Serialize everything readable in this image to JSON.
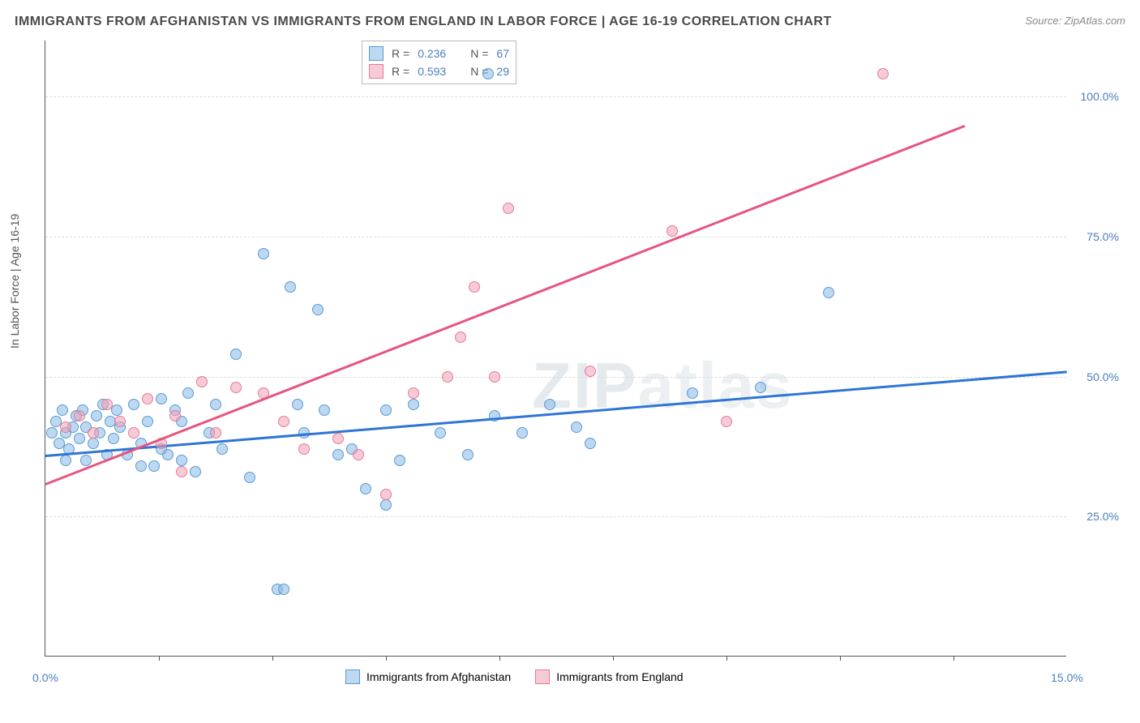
{
  "title": "IMMIGRANTS FROM AFGHANISTAN VS IMMIGRANTS FROM ENGLAND IN LABOR FORCE | AGE 16-19 CORRELATION CHART",
  "source": "Source: ZipAtlas.com",
  "ylabel": "In Labor Force | Age 16-19",
  "watermark": "ZIPatlas",
  "chart": {
    "type": "scatter",
    "xlim": [
      0,
      15
    ],
    "ylim": [
      0,
      110
    ],
    "x_ticks_major": [
      0,
      15
    ],
    "x_ticks_minor": [
      1.67,
      3.33,
      5.0,
      6.67,
      8.33,
      10.0,
      11.67,
      13.33
    ],
    "x_tick_labels": [
      "0.0%",
      "15.0%"
    ],
    "y_ticks": [
      25,
      50,
      75,
      100
    ],
    "y_tick_labels": [
      "25.0%",
      "50.0%",
      "75.0%",
      "100.0%"
    ],
    "grid_color": "#dddddd",
    "background_color": "#ffffff",
    "tick_label_color": "#4a7ebb",
    "axis_label_color": "#555555",
    "series": [
      {
        "name": "Immigrants from Afghanistan",
        "color_fill": "rgba(135,185,230,0.55)",
        "color_stroke": "#5a9bd4",
        "trend_color": "#2e75d6",
        "marker_size": 14,
        "R": "0.236",
        "N": "67",
        "trend": {
          "x1": 0,
          "y1": 36,
          "x2": 15,
          "y2": 51
        },
        "points": [
          [
            0.1,
            40
          ],
          [
            0.15,
            42
          ],
          [
            0.2,
            38
          ],
          [
            0.25,
            44
          ],
          [
            0.3,
            40
          ],
          [
            0.35,
            37
          ],
          [
            0.4,
            41
          ],
          [
            0.45,
            43
          ],
          [
            0.5,
            39
          ],
          [
            0.55,
            44
          ],
          [
            0.6,
            41
          ],
          [
            0.7,
            38
          ],
          [
            0.75,
            43
          ],
          [
            0.8,
            40
          ],
          [
            0.85,
            45
          ],
          [
            0.9,
            36
          ],
          [
            0.95,
            42
          ],
          [
            1.0,
            39
          ],
          [
            1.05,
            44
          ],
          [
            1.1,
            41
          ],
          [
            1.2,
            36
          ],
          [
            1.3,
            45
          ],
          [
            1.4,
            38
          ],
          [
            1.5,
            42
          ],
          [
            1.6,
            34
          ],
          [
            1.7,
            46
          ],
          [
            1.8,
            36
          ],
          [
            1.9,
            44
          ],
          [
            2.0,
            35
          ],
          [
            2.1,
            47
          ],
          [
            2.2,
            33
          ],
          [
            2.4,
            40
          ],
          [
            2.6,
            37
          ],
          [
            2.8,
            54
          ],
          [
            3.0,
            32
          ],
          [
            3.2,
            72
          ],
          [
            3.4,
            12
          ],
          [
            3.5,
            12
          ],
          [
            3.6,
            66
          ],
          [
            3.7,
            45
          ],
          [
            3.8,
            40
          ],
          [
            4.0,
            62
          ],
          [
            4.1,
            44
          ],
          [
            4.3,
            36
          ],
          [
            4.5,
            37
          ],
          [
            4.7,
            30
          ],
          [
            5.0,
            44
          ],
          [
            5.0,
            27
          ],
          [
            5.2,
            35
          ],
          [
            5.4,
            45
          ],
          [
            5.8,
            40
          ],
          [
            6.2,
            36
          ],
          [
            6.5,
            104
          ],
          [
            6.6,
            43
          ],
          [
            7.0,
            40
          ],
          [
            7.4,
            45
          ],
          [
            7.8,
            41
          ],
          [
            8.0,
            38
          ],
          [
            9.5,
            47
          ],
          [
            10.5,
            48
          ],
          [
            11.5,
            65
          ],
          [
            0.3,
            35
          ],
          [
            0.6,
            35
          ],
          [
            1.4,
            34
          ],
          [
            1.7,
            37
          ],
          [
            2.0,
            42
          ],
          [
            2.5,
            45
          ]
        ]
      },
      {
        "name": "Immigrants from England",
        "color_fill": "rgba(240,160,180,0.55)",
        "color_stroke": "#e77a99",
        "trend_color": "#e75480",
        "marker_size": 14,
        "R": "0.593",
        "N": "29",
        "trend": {
          "x1": 0,
          "y1": 31,
          "x2": 13.5,
          "y2": 95
        },
        "points": [
          [
            0.3,
            41
          ],
          [
            0.5,
            43
          ],
          [
            0.7,
            40
          ],
          [
            0.9,
            45
          ],
          [
            1.1,
            42
          ],
          [
            1.3,
            40
          ],
          [
            1.5,
            46
          ],
          [
            1.7,
            38
          ],
          [
            1.9,
            43
          ],
          [
            2.0,
            33
          ],
          [
            2.3,
            49
          ],
          [
            2.5,
            40
          ],
          [
            2.8,
            48
          ],
          [
            3.2,
            47
          ],
          [
            3.5,
            42
          ],
          [
            3.8,
            37
          ],
          [
            4.3,
            39
          ],
          [
            4.6,
            36
          ],
          [
            5.0,
            29
          ],
          [
            5.4,
            47
          ],
          [
            5.9,
            50
          ],
          [
            6.1,
            57
          ],
          [
            6.3,
            66
          ],
          [
            6.6,
            50
          ],
          [
            6.8,
            80
          ],
          [
            8.0,
            51
          ],
          [
            9.2,
            76
          ],
          [
            10.0,
            42
          ],
          [
            12.3,
            104
          ]
        ]
      }
    ]
  },
  "legend_bottom": {
    "series1_label": "Immigrants from Afghanistan",
    "series2_label": "Immigrants from England"
  },
  "legend_top": {
    "row1": {
      "r_label": "R =",
      "r_val": "0.236",
      "n_label": "N =",
      "n_val": "67"
    },
    "row2": {
      "r_label": "R =",
      "r_val": "0.593",
      "n_label": "N =",
      "n_val": "29"
    }
  }
}
